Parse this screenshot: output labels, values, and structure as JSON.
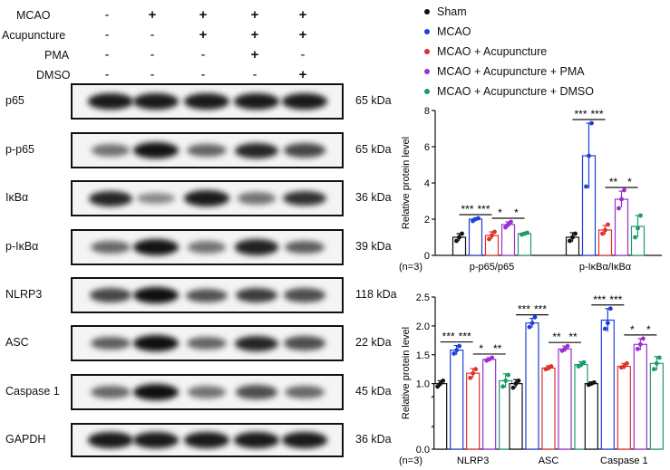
{
  "treatment_table": {
    "rows": [
      {
        "label": "MCAO",
        "signs": [
          "-",
          "+",
          "+",
          "+",
          "+"
        ]
      },
      {
        "label": "Acupuncture",
        "signs": [
          "-",
          "-",
          "+",
          "+",
          "+"
        ]
      },
      {
        "label": "PMA",
        "signs": [
          "-",
          "-",
          "-",
          "+",
          "-"
        ]
      },
      {
        "label": "DMSO",
        "signs": [
          "-",
          "-",
          "-",
          "-",
          "+"
        ]
      }
    ]
  },
  "blots": [
    {
      "protein": "p65",
      "kda": "65 kDa",
      "intensity": [
        0.95,
        0.95,
        0.95,
        0.95,
        0.95
      ]
    },
    {
      "protein": "p-p65",
      "kda": "65 kDa",
      "intensity": [
        0.55,
        0.98,
        0.62,
        0.9,
        0.75
      ]
    },
    {
      "protein": "IκBα",
      "kda": "36 kDa",
      "intensity": [
        0.9,
        0.45,
        0.95,
        0.55,
        0.85
      ]
    },
    {
      "protein": "p-IκBα",
      "kda": "39 kDa",
      "intensity": [
        0.6,
        0.98,
        0.55,
        0.92,
        0.65
      ]
    },
    {
      "protein": "NLRP3",
      "kda": "118 kDa",
      "intensity": [
        0.75,
        1.0,
        0.7,
        0.8,
        0.72
      ]
    },
    {
      "protein": "ASC",
      "kda": "22 kDa",
      "intensity": [
        0.65,
        1.0,
        0.62,
        0.9,
        0.72
      ]
    },
    {
      "protein": "Caspase 1",
      "kda": "45 kDa",
      "intensity": [
        0.6,
        1.0,
        0.55,
        0.72,
        0.6
      ]
    },
    {
      "protein": "GAPDH",
      "kda": "36 kDa",
      "intensity": [
        0.95,
        0.95,
        0.95,
        0.95,
        0.95
      ]
    }
  ],
  "legend": [
    {
      "label": "Sham",
      "color": "#111111"
    },
    {
      "label": "MCAO",
      "color": "#1f3fd6"
    },
    {
      "label": "MCAO + Acupuncture",
      "color": "#e0302a"
    },
    {
      "label": "MCAO + Acupuncture + PMA",
      "color": "#9b2fd0"
    },
    {
      "label": "MCAO + Acupuncture + DMSO",
      "color": "#1e9a6a"
    }
  ],
  "n_label": "(n=3)",
  "chart_data": [
    {
      "type": "bar",
      "ylabel": "Relative protein level",
      "ylim": [
        0,
        8
      ],
      "yticks": [
        0,
        2,
        4,
        6,
        8
      ],
      "categories": [
        "p-p65/p65",
        "p-IκBα/IκBα"
      ],
      "series": [
        {
          "name": "Sham",
          "values": [
            1.0,
            1.0
          ]
        },
        {
          "name": "MCAO",
          "values": [
            2.0,
            5.5
          ]
        },
        {
          "name": "MCAO + Acupuncture",
          "values": [
            1.1,
            1.4
          ]
        },
        {
          "name": "MCAO + Acupuncture + PMA",
          "values": [
            1.7,
            3.1
          ]
        },
        {
          "name": "MCAO + Acupuncture + DMSO",
          "values": [
            1.2,
            1.6
          ]
        }
      ],
      "errors": [
        [
          0.2,
          0.25
        ],
        [
          0.05,
          1.8
        ],
        [
          0.2,
          0.25
        ],
        [
          0.15,
          0.45
        ],
        [
          0.05,
          0.6
        ]
      ],
      "points": [
        [
          [
            0.8,
            1.0,
            1.2
          ],
          [
            0.8,
            1.0,
            1.2
          ]
        ],
        [
          [
            1.9,
            2.0,
            2.05
          ],
          [
            3.8,
            5.5,
            7.3
          ]
        ],
        [
          [
            0.9,
            1.1,
            1.3
          ],
          [
            1.2,
            1.4,
            1.7
          ]
        ],
        [
          [
            1.55,
            1.7,
            1.85
          ],
          [
            2.6,
            3.1,
            3.6
          ]
        ],
        [
          [
            1.15,
            1.2,
            1.25
          ],
          [
            1.0,
            1.5,
            2.2
          ]
        ]
      ],
      "significance": [
        {
          "cat": 0,
          "from": 0,
          "to": 1,
          "label": "***"
        },
        {
          "cat": 0,
          "from": 1,
          "to": 2,
          "label": "***"
        },
        {
          "cat": 0,
          "from": 2,
          "to": 3,
          "label": "*"
        },
        {
          "cat": 0,
          "from": 3,
          "to": 4,
          "label": "*"
        },
        {
          "cat": 1,
          "from": 0,
          "to": 1,
          "label": "***"
        },
        {
          "cat": 1,
          "from": 1,
          "to": 2,
          "label": "***"
        },
        {
          "cat": 1,
          "from": 2,
          "to": 3,
          "label": "**"
        },
        {
          "cat": 1,
          "from": 3,
          "to": 4,
          "label": "*"
        }
      ]
    },
    {
      "type": "bar",
      "ylabel": "Relative protein level",
      "ylim": [
        0,
        2.5
      ],
      "axis_break": [
        0.3,
        0.9
      ],
      "yticks": [
        0.0,
        1.0,
        1.5,
        2.0,
        2.5
      ],
      "categories": [
        "NLRP3",
        "ASC",
        "Caspase 1"
      ],
      "series": [
        {
          "name": "Sham",
          "values": [
            1.0,
            1.0,
            1.0
          ]
        },
        {
          "name": "MCAO",
          "values": [
            1.58,
            2.05,
            2.1
          ]
        },
        {
          "name": "MCAO + Acupuncture",
          "values": [
            1.18,
            1.27,
            1.3
          ]
        },
        {
          "name": "MCAO + Acupuncture + PMA",
          "values": [
            1.42,
            1.6,
            1.68
          ]
        },
        {
          "name": "MCAO + Acupuncture + DMSO",
          "values": [
            1.05,
            1.33,
            1.35
          ]
        }
      ],
      "errors": [
        [
          0.05,
          0.07,
          0.03
        ],
        [
          0.08,
          0.08,
          0.2
        ],
        [
          0.08,
          0.04,
          0.05
        ],
        [
          0.03,
          0.05,
          0.1
        ],
        [
          0.12,
          0.05,
          0.12
        ]
      ],
      "points": [
        [
          [
            0.95,
            1.0,
            1.05
          ],
          [
            0.93,
            1.0,
            1.05
          ],
          [
            0.98,
            1.0,
            1.02
          ]
        ],
        [
          [
            1.52,
            1.58,
            1.65
          ],
          [
            1.98,
            2.05,
            2.15
          ],
          [
            1.95,
            2.05,
            2.3
          ]
        ],
        [
          [
            1.1,
            1.18,
            1.25
          ],
          [
            1.25,
            1.27,
            1.3
          ],
          [
            1.28,
            1.3,
            1.35
          ]
        ],
        [
          [
            1.4,
            1.42,
            1.45
          ],
          [
            1.57,
            1.6,
            1.65
          ],
          [
            1.6,
            1.68,
            1.78
          ]
        ],
        [
          [
            0.95,
            1.05,
            1.15
          ],
          [
            1.3,
            1.33,
            1.37
          ],
          [
            1.25,
            1.35,
            1.45
          ]
        ]
      ],
      "significance": [
        {
          "cat": 0,
          "from": 0,
          "to": 1,
          "label": "***"
        },
        {
          "cat": 0,
          "from": 1,
          "to": 2,
          "label": "***"
        },
        {
          "cat": 0,
          "from": 2,
          "to": 3,
          "label": "*"
        },
        {
          "cat": 0,
          "from": 3,
          "to": 4,
          "label": "**"
        },
        {
          "cat": 1,
          "from": 0,
          "to": 1,
          "label": "***"
        },
        {
          "cat": 1,
          "from": 1,
          "to": 2,
          "label": "***"
        },
        {
          "cat": 1,
          "from": 2,
          "to": 3,
          "label": "**"
        },
        {
          "cat": 1,
          "from": 3,
          "to": 4,
          "label": "**"
        },
        {
          "cat": 2,
          "from": 0,
          "to": 1,
          "label": "***"
        },
        {
          "cat": 2,
          "from": 1,
          "to": 2,
          "label": "***"
        },
        {
          "cat": 2,
          "from": 2,
          "to": 3,
          "label": "*"
        },
        {
          "cat": 2,
          "from": 3,
          "to": 4,
          "label": "*"
        }
      ]
    }
  ]
}
